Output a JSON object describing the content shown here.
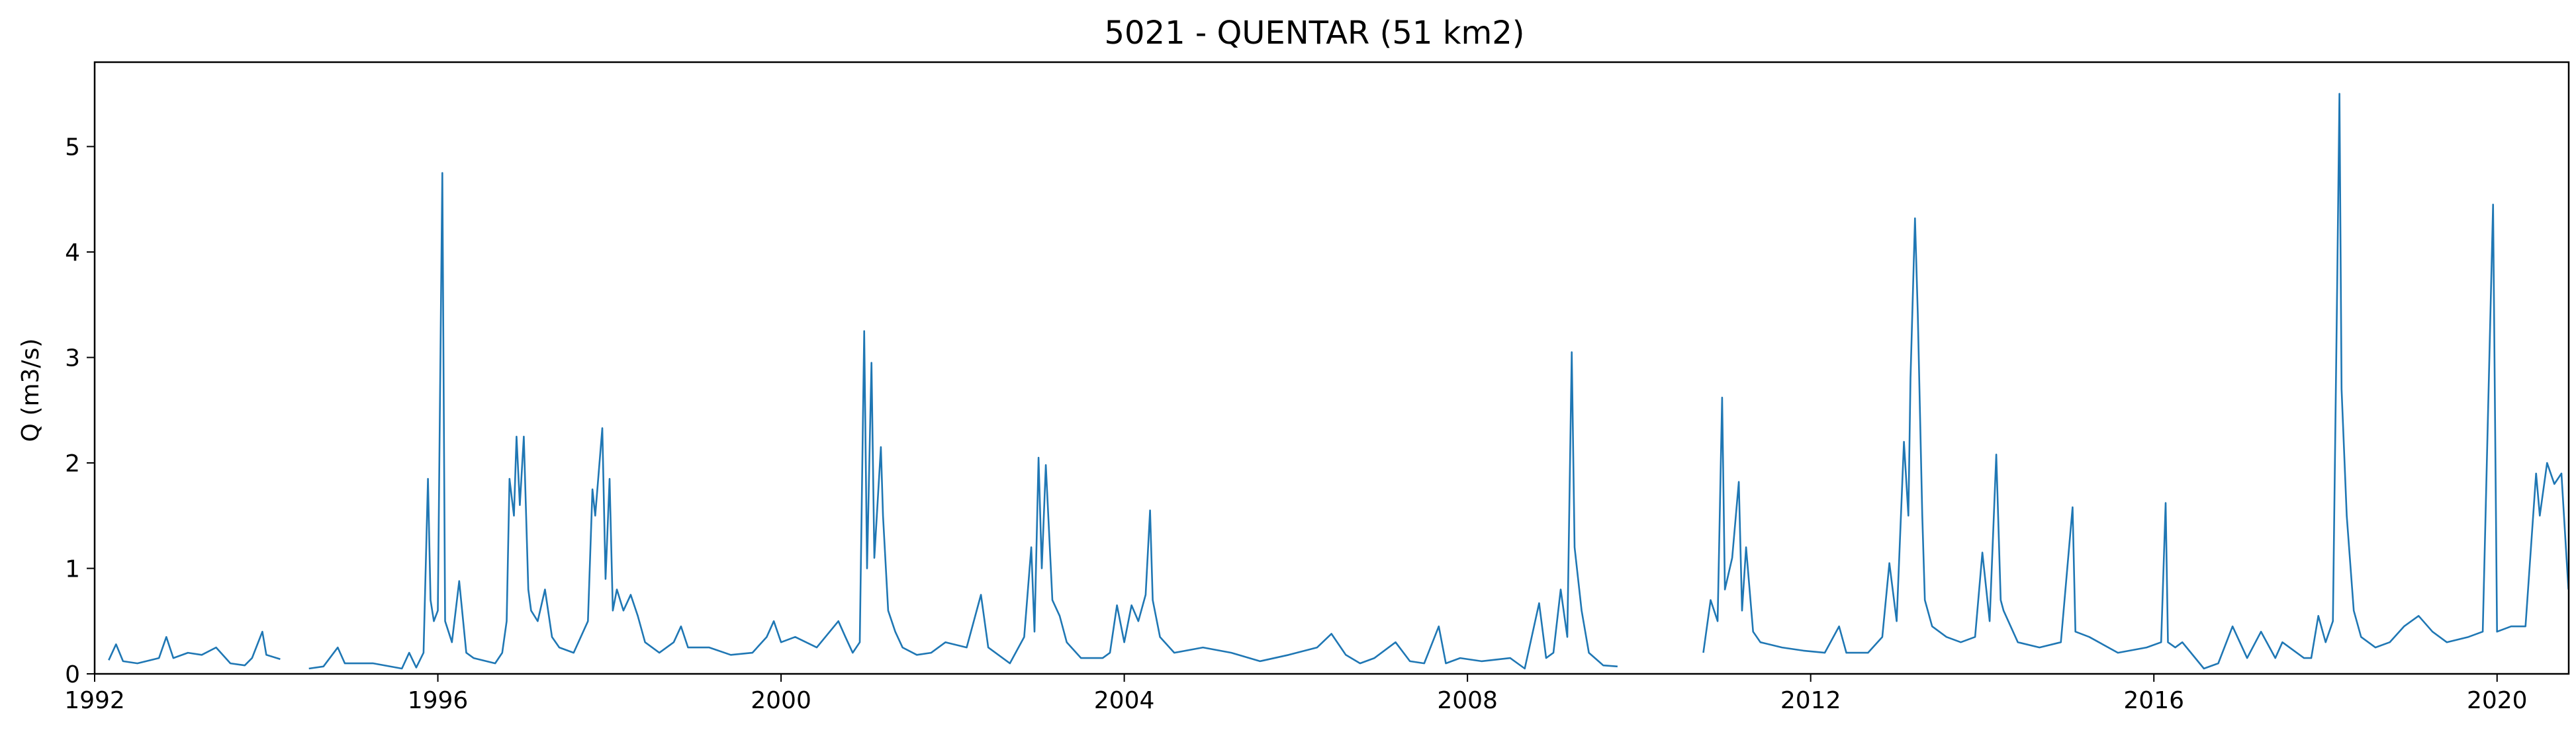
{
  "chart_data": {
    "type": "line",
    "title": "5021 - QUENTAR (51 km2)",
    "xlabel": "",
    "ylabel": "Q (m3/s)",
    "xlim": [
      "1992-01-01",
      "2020-11-01"
    ],
    "ylim": [
      0,
      5.8
    ],
    "x_ticks": [
      "1992",
      "1996",
      "2000",
      "2004",
      "2008",
      "2012",
      "2016",
      "2020"
    ],
    "y_ticks": [
      "0",
      "1",
      "2",
      "3",
      "4",
      "5"
    ],
    "grid": false,
    "color": "#1f77b4",
    "series": [
      {
        "segments": [
          [
            [
              "1992-03-01",
              0.13
            ],
            [
              "1992-04-01",
              0.28
            ],
            [
              "1992-05-01",
              0.12
            ],
            [
              "1992-07-01",
              0.1
            ],
            [
              "1992-10-01",
              0.15
            ],
            [
              "1992-11-01",
              0.35
            ],
            [
              "1992-12-01",
              0.15
            ],
            [
              "1993-02-01",
              0.2
            ],
            [
              "1993-04-01",
              0.18
            ],
            [
              "1993-06-01",
              0.25
            ],
            [
              "1993-08-01",
              0.1
            ],
            [
              "1993-10-01",
              0.08
            ],
            [
              "1993-11-01",
              0.15
            ],
            [
              "1993-12-15",
              0.4
            ],
            [
              "1994-01-01",
              0.18
            ],
            [
              "1994-03-01",
              0.14
            ]
          ],
          [
            [
              "1994-07-01",
              0.05
            ],
            [
              "1994-09-01",
              0.07
            ],
            [
              "1994-11-01",
              0.25
            ],
            [
              "1994-12-01",
              0.1
            ],
            [
              "1995-04-01",
              0.1
            ],
            [
              "1995-08-01",
              0.05
            ],
            [
              "1995-09-01",
              0.2
            ],
            [
              "1995-10-01",
              0.06
            ],
            [
              "1995-11-01",
              0.2
            ],
            [
              "1995-11-20",
              1.85
            ],
            [
              "1995-12-01",
              0.7
            ],
            [
              "1995-12-15",
              0.5
            ],
            [
              "1996-01-01",
              0.6
            ],
            [
              "1996-01-20",
              4.75
            ],
            [
              "1996-02-01",
              0.5
            ],
            [
              "1996-03-01",
              0.3
            ],
            [
              "1996-04-01",
              0.88
            ],
            [
              "1996-05-01",
              0.2
            ],
            [
              "1996-06-01",
              0.15
            ],
            [
              "1996-09-01",
              0.1
            ],
            [
              "1996-10-01",
              0.2
            ],
            [
              "1996-10-20",
              0.5
            ],
            [
              "1996-11-01",
              1.85
            ],
            [
              "1996-11-20",
              1.5
            ],
            [
              "1996-12-01",
              2.25
            ],
            [
              "1996-12-15",
              1.6
            ],
            [
              "1997-01-01",
              2.25
            ],
            [
              "1997-01-20",
              0.8
            ],
            [
              "1997-02-01",
              0.6
            ],
            [
              "1997-03-01",
              0.5
            ],
            [
              "1997-04-01",
              0.8
            ],
            [
              "1997-05-01",
              0.35
            ],
            [
              "1997-06-01",
              0.25
            ],
            [
              "1997-08-01",
              0.2
            ],
            [
              "1997-10-01",
              0.5
            ],
            [
              "1997-10-20",
              1.75
            ],
            [
              "1997-11-01",
              1.5
            ],
            [
              "1997-12-01",
              2.33
            ],
            [
              "1997-12-15",
              0.9
            ],
            [
              "1998-01-01",
              1.85
            ],
            [
              "1998-01-15",
              0.6
            ],
            [
              "1998-02-01",
              0.8
            ],
            [
              "1998-03-01",
              0.6
            ],
            [
              "1998-04-01",
              0.75
            ],
            [
              "1998-05-01",
              0.55
            ],
            [
              "1998-06-01",
              0.3
            ],
            [
              "1998-08-01",
              0.2
            ],
            [
              "1998-10-01",
              0.3
            ],
            [
              "1998-11-01",
              0.45
            ],
            [
              "1998-12-01",
              0.25
            ],
            [
              "1999-03-01",
              0.25
            ],
            [
              "1999-06-01",
              0.18
            ],
            [
              "1999-09-01",
              0.2
            ],
            [
              "1999-11-01",
              0.35
            ],
            [
              "1999-12-01",
              0.5
            ],
            [
              "2000-01-01",
              0.3
            ],
            [
              "2000-03-01",
              0.35
            ],
            [
              "2000-06-01",
              0.25
            ],
            [
              "2000-09-01",
              0.5
            ],
            [
              "2000-10-01",
              0.35
            ],
            [
              "2000-11-01",
              0.2
            ],
            [
              "2000-12-01",
              0.3
            ],
            [
              "2000-12-20",
              3.25
            ],
            [
              "2001-01-01",
              1.0
            ],
            [
              "2001-01-20",
              2.95
            ],
            [
              "2001-02-01",
              1.1
            ],
            [
              "2001-03-01",
              2.15
            ],
            [
              "2001-03-10",
              1.5
            ],
            [
              "2001-04-01",
              0.6
            ],
            [
              "2001-05-01",
              0.4
            ],
            [
              "2001-06-01",
              0.25
            ],
            [
              "2001-08-01",
              0.18
            ],
            [
              "2001-10-01",
              0.2
            ],
            [
              "2001-12-01",
              0.3
            ],
            [
              "2002-03-01",
              0.25
            ],
            [
              "2002-05-01",
              0.75
            ],
            [
              "2002-06-01",
              0.25
            ],
            [
              "2002-09-01",
              0.1
            ],
            [
              "2002-11-01",
              0.35
            ],
            [
              "2002-12-01",
              1.2
            ],
            [
              "2002-12-15",
              0.4
            ],
            [
              "2003-01-01",
              2.05
            ],
            [
              "2003-01-15",
              1.0
            ],
            [
              "2003-02-01",
              1.98
            ],
            [
              "2003-03-01",
              0.7
            ],
            [
              "2003-04-01",
              0.55
            ],
            [
              "2003-05-01",
              0.3
            ],
            [
              "2003-07-01",
              0.15
            ],
            [
              "2003-10-01",
              0.15
            ],
            [
              "2003-11-01",
              0.2
            ],
            [
              "2003-12-01",
              0.65
            ],
            [
              "2004-01-01",
              0.3
            ],
            [
              "2004-02-01",
              0.65
            ],
            [
              "2004-03-01",
              0.5
            ],
            [
              "2004-04-01",
              0.75
            ],
            [
              "2004-04-20",
              1.55
            ],
            [
              "2004-05-01",
              0.7
            ],
            [
              "2004-06-01",
              0.35
            ],
            [
              "2004-08-01",
              0.2
            ],
            [
              "2004-12-01",
              0.25
            ],
            [
              "2005-04-01",
              0.2
            ],
            [
              "2005-08-01",
              0.12
            ],
            [
              "2005-12-01",
              0.18
            ],
            [
              "2006-04-01",
              0.25
            ],
            [
              "2006-06-01",
              0.38
            ],
            [
              "2006-08-01",
              0.18
            ],
            [
              "2006-10-01",
              0.1
            ],
            [
              "2006-12-01",
              0.15
            ],
            [
              "2007-03-01",
              0.3
            ],
            [
              "2007-05-01",
              0.12
            ],
            [
              "2007-07-01",
              0.1
            ],
            [
              "2007-09-01",
              0.45
            ],
            [
              "2007-10-01",
              0.1
            ],
            [
              "2007-12-01",
              0.15
            ],
            [
              "2008-03-01",
              0.12
            ],
            [
              "2008-07-01",
              0.15
            ],
            [
              "2008-09-01",
              0.05
            ],
            [
              "2008-11-01",
              0.67
            ],
            [
              "2008-12-01",
              0.15
            ],
            [
              "2009-01-01",
              0.2
            ],
            [
              "2009-02-01",
              0.8
            ],
            [
              "2009-03-01",
              0.35
            ],
            [
              "2009-03-20",
              3.05
            ],
            [
              "2009-04-01",
              1.2
            ],
            [
              "2009-05-01",
              0.6
            ],
            [
              "2009-06-01",
              0.2
            ],
            [
              "2009-08-01",
              0.08
            ],
            [
              "2009-10-01",
              0.07
            ]
          ],
          [
            [
              "2010-10-01",
              0.2
            ],
            [
              "2010-11-01",
              0.7
            ],
            [
              "2010-12-01",
              0.5
            ],
            [
              "2010-12-20",
              2.62
            ],
            [
              "2011-01-01",
              0.8
            ],
            [
              "2011-02-01",
              1.1
            ],
            [
              "2011-03-01",
              1.82
            ],
            [
              "2011-03-15",
              0.6
            ],
            [
              "2011-04-01",
              1.2
            ],
            [
              "2011-05-01",
              0.4
            ],
            [
              "2011-06-01",
              0.3
            ],
            [
              "2011-09-01",
              0.25
            ],
            [
              "2011-12-01",
              0.22
            ],
            [
              "2012-03-01",
              0.2
            ],
            [
              "2012-05-01",
              0.45
            ],
            [
              "2012-06-01",
              0.2
            ],
            [
              "2012-09-01",
              0.2
            ],
            [
              "2012-11-01",
              0.35
            ],
            [
              "2012-12-01",
              1.05
            ],
            [
              "2013-01-01",
              0.5
            ],
            [
              "2013-02-01",
              2.2
            ],
            [
              "2013-02-20",
              1.5
            ],
            [
              "2013-03-01",
              2.8
            ],
            [
              "2013-03-20",
              4.32
            ],
            [
              "2013-04-01",
              3.42
            ],
            [
              "2013-04-20",
              1.5
            ],
            [
              "2013-05-01",
              0.7
            ],
            [
              "2013-06-01",
              0.45
            ],
            [
              "2013-08-01",
              0.35
            ],
            [
              "2013-10-01",
              0.3
            ],
            [
              "2013-12-01",
              0.35
            ],
            [
              "2014-01-01",
              1.15
            ],
            [
              "2014-02-01",
              0.5
            ],
            [
              "2014-03-01",
              2.08
            ],
            [
              "2014-03-20",
              0.7
            ],
            [
              "2014-04-01",
              0.6
            ],
            [
              "2014-06-01",
              0.3
            ],
            [
              "2014-09-01",
              0.25
            ],
            [
              "2014-12-01",
              0.3
            ],
            [
              "2015-01-20",
              1.58
            ],
            [
              "2015-02-01",
              0.4
            ],
            [
              "2015-04-01",
              0.35
            ],
            [
              "2015-08-01",
              0.2
            ],
            [
              "2015-12-01",
              0.25
            ],
            [
              "2016-02-01",
              0.3
            ],
            [
              "2016-02-20",
              1.62
            ],
            [
              "2016-03-01",
              0.3
            ],
            [
              "2016-04-01",
              0.25
            ],
            [
              "2016-05-01",
              0.3
            ],
            [
              "2016-08-01",
              0.05
            ],
            [
              "2016-10-01",
              0.1
            ],
            [
              "2016-12-01",
              0.45
            ],
            [
              "2017-02-01",
              0.15
            ],
            [
              "2017-04-01",
              0.4
            ],
            [
              "2017-06-01",
              0.15
            ],
            [
              "2017-07-01",
              0.3
            ],
            [
              "2017-10-01",
              0.15
            ],
            [
              "2017-11-01",
              0.15
            ],
            [
              "2017-12-01",
              0.55
            ],
            [
              "2018-01-01",
              0.3
            ],
            [
              "2018-02-01",
              0.5
            ],
            [
              "2018-02-20",
              3.8
            ],
            [
              "2018-03-01",
              5.5
            ],
            [
              "2018-03-10",
              2.7
            ],
            [
              "2018-04-01",
              1.5
            ],
            [
              "2018-05-01",
              0.6
            ],
            [
              "2018-06-01",
              0.35
            ],
            [
              "2018-08-01",
              0.25
            ],
            [
              "2018-10-01",
              0.3
            ],
            [
              "2018-12-01",
              0.45
            ],
            [
              "2019-02-01",
              0.55
            ],
            [
              "2019-04-01",
              0.4
            ],
            [
              "2019-06-01",
              0.3
            ],
            [
              "2019-09-01",
              0.35
            ],
            [
              "2019-11-01",
              0.4
            ],
            [
              "2019-12-15",
              4.45
            ],
            [
              "2020-01-01",
              0.4
            ],
            [
              "2020-03-01",
              0.45
            ],
            [
              "2020-05-01",
              0.45
            ],
            [
              "2020-06-15",
              1.9
            ],
            [
              "2020-07-01",
              1.5
            ],
            [
              "2020-08-01",
              2.0
            ],
            [
              "2020-09-01",
              1.8
            ],
            [
              "2020-10-01",
              1.9
            ],
            [
              "2020-10-20",
              1.2
            ],
            [
              "2020-10-31",
              0.8
            ]
          ]
        ]
      }
    ]
  }
}
